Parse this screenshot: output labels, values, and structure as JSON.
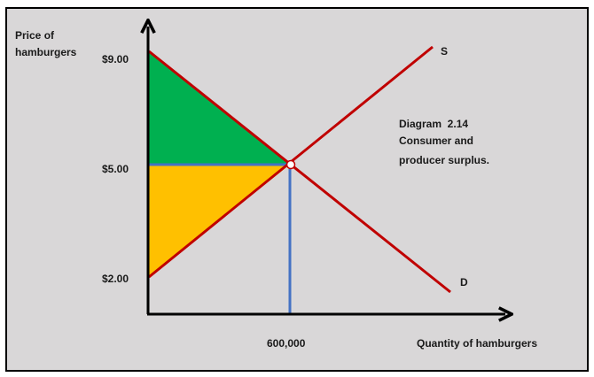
{
  "diagram": {
    "y_axis_label": [
      "Price of",
      "hamburgers"
    ],
    "x_axis_label": "Quantity of hamburgers",
    "price_ticks": [
      "$9.00",
      "$5.00",
      "$2.00"
    ],
    "quantity_tick": "600,000",
    "supply_label": "S",
    "demand_label": "D",
    "caption": [
      "Diagram  2.14",
      "Consumer and",
      "producer surplus."
    ],
    "prices": {
      "demand_intercept": 9.0,
      "equilibrium": 5.0,
      "supply_intercept": 2.0
    },
    "equilibrium_quantity": 600000,
    "colors": {
      "background": "#d9d7d8",
      "consumer_surplus": "#00b050",
      "producer_surplus": "#ffc000",
      "curves": "#c00000",
      "guides": "#4472c4",
      "axes": "#000000"
    }
  }
}
